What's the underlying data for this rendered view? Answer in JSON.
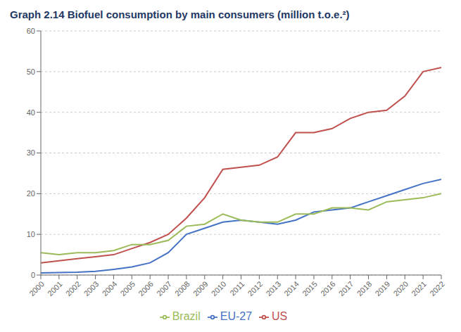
{
  "chart_data": {
    "type": "line",
    "title": "Graph 2.14   Biofuel consumption by main consumers (million t.o.e.²)",
    "x": [
      2000,
      2001,
      2002,
      2003,
      2004,
      2005,
      2006,
      2007,
      2008,
      2009,
      2010,
      2011,
      2012,
      2013,
      2014,
      2015,
      2016,
      2017,
      2018,
      2019,
      2020,
      2021,
      2022
    ],
    "xlim": [
      2000,
      2022
    ],
    "xticks": [
      2000,
      2001,
      2002,
      2003,
      2004,
      2005,
      2006,
      2007,
      2008,
      2009,
      2010,
      2011,
      2012,
      2013,
      2014,
      2015,
      2016,
      2017,
      2018,
      2019,
      2020,
      2021,
      2022
    ],
    "ylim": [
      0,
      60
    ],
    "yticks": [
      0,
      10,
      20,
      30,
      40,
      50,
      60
    ],
    "grid": true,
    "legend": "bottom",
    "series": [
      {
        "name": "EU-27",
        "color": "#4472c4",
        "values": [
          0.5,
          0.6,
          0.7,
          0.9,
          1.4,
          2.0,
          3.0,
          5.5,
          10.0,
          11.5,
          13.0,
          13.5,
          13.0,
          12.5,
          13.5,
          15.5,
          16.0,
          16.5,
          18.0,
          19.5,
          21.0,
          22.5,
          23.5
        ]
      },
      {
        "name": "US",
        "color": "#c0504d",
        "values": [
          3.0,
          3.5,
          4.0,
          4.5,
          5.0,
          6.5,
          8.0,
          10.0,
          14.0,
          19.0,
          26.0,
          26.5,
          27.0,
          29.0,
          35.0,
          35.0,
          36.0,
          38.5,
          40.0,
          40.5,
          44.0,
          50.0,
          51.0
        ]
      },
      {
        "name": "Brazil",
        "color": "#9bbb59",
        "values": [
          5.5,
          5.0,
          5.5,
          5.5,
          6.0,
          7.5,
          7.5,
          8.5,
          12.0,
          12.5,
          15.0,
          13.5,
          13.0,
          13.0,
          15.0,
          15.0,
          16.5,
          16.5,
          16.0,
          18.0,
          18.5,
          19.0,
          20.0
        ]
      }
    ]
  }
}
